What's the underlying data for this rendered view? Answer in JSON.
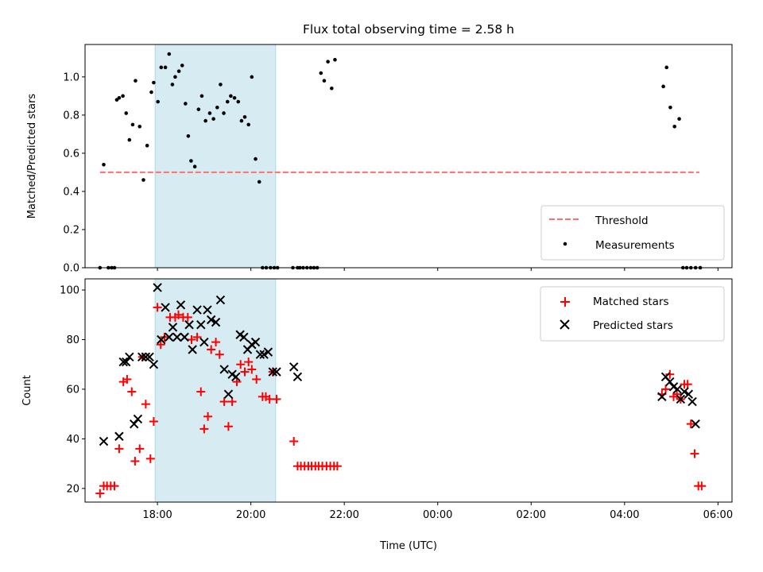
{
  "chart_data": [
    {
      "type": "scatter",
      "title": "Flux total observing time = 2.58 h",
      "xlabel": "",
      "ylabel": "Matched/Predicted stars",
      "x_unit": "hours since 00:00 UTC of the first night",
      "xlim": [
        16.45,
        30.3
      ],
      "ylim": [
        0,
        1.17
      ],
      "yticks": [
        0.0,
        0.2,
        0.4,
        0.6,
        0.8,
        1.0
      ],
      "grid": false,
      "legend_position": "lower right",
      "shaded_interval": {
        "start": 17.95,
        "end": 20.53,
        "color": "#add8e6"
      },
      "threshold": {
        "name": "Threshold",
        "value": 0.5,
        "x_start": 16.77,
        "x_end": 29.6,
        "color": "#ff6f6f"
      },
      "series": [
        {
          "name": "Measurements",
          "color": "#000000",
          "x": [
            16.77,
            16.85,
            16.95,
            17.02,
            17.08,
            17.13,
            17.18,
            17.26,
            17.33,
            17.4,
            17.47,
            17.53,
            17.62,
            17.7,
            17.78,
            17.87,
            17.92,
            18.01,
            18.08,
            18.17,
            18.25,
            18.32,
            18.38,
            18.46,
            18.53,
            18.6,
            18.66,
            18.72,
            18.8,
            18.88,
            18.95,
            19.03,
            19.12,
            19.2,
            19.28,
            19.35,
            19.42,
            19.5,
            19.57,
            19.65,
            19.73,
            19.8,
            19.87,
            19.95,
            20.02,
            20.1,
            20.18,
            20.25,
            20.33,
            20.42,
            20.5,
            20.57,
            20.9,
            21.0,
            21.05,
            21.12,
            21.2,
            21.28,
            21.35,
            21.42,
            21.5,
            21.57,
            21.65,
            21.73,
            21.8,
            28.83,
            28.9,
            28.98,
            29.07,
            29.17,
            29.25,
            29.33,
            29.42,
            29.52,
            29.62
          ],
          "y": [
            0.0,
            0.54,
            0.0,
            0.0,
            0.0,
            0.88,
            0.89,
            0.9,
            0.81,
            0.67,
            0.75,
            0.98,
            0.74,
            0.46,
            0.64,
            0.92,
            0.97,
            0.87,
            1.05,
            1.05,
            1.12,
            0.96,
            1.0,
            1.03,
            1.06,
            0.86,
            0.69,
            0.56,
            0.53,
            0.83,
            0.9,
            0.77,
            0.81,
            0.78,
            0.84,
            0.96,
            0.81,
            0.87,
            0.9,
            0.89,
            0.87,
            0.77,
            0.79,
            0.75,
            1.0,
            0.57,
            0.45,
            0.0,
            0.0,
            0.0,
            0.0,
            0.0,
            0.0,
            0.0,
            0.0,
            0.0,
            0.0,
            0.0,
            0.0,
            0.0,
            1.02,
            0.98,
            1.08,
            0.94,
            1.09,
            0.95,
            1.05,
            0.84,
            0.74,
            0.78,
            0.0,
            0.0,
            0.0,
            0.0,
            0.0
          ]
        }
      ]
    },
    {
      "type": "scatter",
      "title": "",
      "xlabel": "Time (UTC)",
      "ylabel": "Count",
      "x_unit": "hours since 00:00 UTC of the first night",
      "xlim": [
        16.45,
        30.3
      ],
      "ylim": [
        14.5,
        104.5
      ],
      "xticks": [
        18,
        20,
        22,
        24,
        26,
        28,
        30
      ],
      "xtick_labels": [
        "18:00",
        "20:00",
        "22:00",
        "00:00",
        "02:00",
        "04:00",
        "06:00"
      ],
      "yticks": [
        20,
        40,
        60,
        80,
        100
      ],
      "grid": false,
      "legend_position": "upper right",
      "shaded_interval": {
        "start": 17.95,
        "end": 20.53,
        "color": "#add8e6"
      },
      "series": [
        {
          "name": "Matched stars",
          "marker": "+",
          "color": "#ff0000",
          "x": [
            16.77,
            16.85,
            16.92,
            17.0,
            17.08,
            17.18,
            17.27,
            17.35,
            17.45,
            17.52,
            17.62,
            17.68,
            17.75,
            17.85,
            17.92,
            18.0,
            18.07,
            18.15,
            18.27,
            18.38,
            18.45,
            18.55,
            18.65,
            18.73,
            18.85,
            18.93,
            19.0,
            19.08,
            19.15,
            19.25,
            19.33,
            19.43,
            19.52,
            19.6,
            19.7,
            19.78,
            19.87,
            19.95,
            20.02,
            20.12,
            20.25,
            20.32,
            20.4,
            20.47,
            20.55,
            20.92,
            21.0,
            21.07,
            21.15,
            21.23,
            21.3,
            21.38,
            21.45,
            21.53,
            21.62,
            21.7,
            21.78,
            21.85,
            28.8,
            28.88,
            28.97,
            29.05,
            29.12,
            29.2,
            29.28,
            29.35,
            29.42,
            29.5,
            29.58,
            29.65
          ],
          "y": [
            18,
            21,
            21,
            21,
            21,
            36,
            63,
            64,
            59,
            31,
            36,
            73,
            54,
            32,
            47,
            93,
            78,
            81,
            89,
            89,
            90,
            89,
            89,
            80,
            81,
            59,
            44,
            49,
            76,
            79,
            74,
            55,
            45,
            55,
            63,
            70,
            67,
            71,
            68,
            64,
            57,
            57,
            56,
            67,
            56,
            39,
            29,
            29,
            29,
            29,
            29,
            29,
            29,
            29,
            29,
            29,
            29,
            29,
            58,
            60,
            66,
            57,
            58,
            56,
            62,
            62,
            46,
            34,
            21,
            21
          ]
        },
        {
          "name": "Predicted stars",
          "marker": "x",
          "color": "#000000",
          "x": [
            16.85,
            17.18,
            17.27,
            17.33,
            17.4,
            17.5,
            17.58,
            17.67,
            17.75,
            17.83,
            17.92,
            18.0,
            18.08,
            18.17,
            18.25,
            18.33,
            18.42,
            18.5,
            18.58,
            18.68,
            18.75,
            18.85,
            18.93,
            19.0,
            19.07,
            19.15,
            19.25,
            19.35,
            19.43,
            19.52,
            19.6,
            19.68,
            19.77,
            19.85,
            19.93,
            20.02,
            20.1,
            20.2,
            20.28,
            20.37,
            20.47,
            20.55,
            20.92,
            21.0,
            28.8,
            28.88,
            28.97,
            29.05,
            29.13,
            29.2,
            29.28,
            29.37,
            29.45,
            29.52
          ],
          "y": [
            39,
            41,
            71,
            71,
            73,
            46,
            48,
            73,
            73,
            73,
            70,
            101,
            80,
            93,
            81,
            85,
            81,
            94,
            81,
            86,
            76,
            92,
            86,
            79,
            92,
            88,
            87,
            96,
            68,
            58,
            66,
            65,
            82,
            81,
            76,
            78,
            79,
            74,
            74,
            75,
            67,
            67,
            69,
            65,
            57,
            65,
            63,
            61,
            60,
            56,
            59,
            58,
            55,
            46
          ]
        }
      ]
    }
  ]
}
